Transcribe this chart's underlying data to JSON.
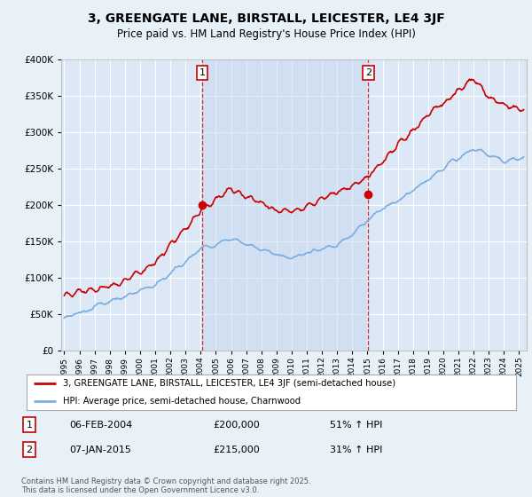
{
  "title": "3, GREENGATE LANE, BIRSTALL, LEICESTER, LE4 3JF",
  "subtitle": "Price paid vs. HM Land Registry's House Price Index (HPI)",
  "bg_color": "#e8f0f8",
  "plot_bg_color": "#dce8f5",
  "grid_color": "#ffffff",
  "red_line_color": "#cc0000",
  "blue_line_color": "#7aade0",
  "shade_color": "#c8d8f0",
  "marker1_x": 2004.1,
  "marker1_y": 200000,
  "marker2_x": 2015.05,
  "marker2_y": 215000,
  "ylim": [
    0,
    400000
  ],
  "xlim_start": 1994.8,
  "xlim_end": 2025.5,
  "legend_label_red": "3, GREENGATE LANE, BIRSTALL, LEICESTER, LE4 3JF (semi-detached house)",
  "legend_label_blue": "HPI: Average price, semi-detached house, Charnwood",
  "annotation1_label": "1",
  "annotation1_date": "06-FEB-2004",
  "annotation1_price": "£200,000",
  "annotation1_pct": "51% ↑ HPI",
  "annotation2_label": "2",
  "annotation2_date": "07-JAN-2015",
  "annotation2_price": "£215,000",
  "annotation2_pct": "31% ↑ HPI",
  "footer": "Contains HM Land Registry data © Crown copyright and database right 2025.\nThis data is licensed under the Open Government Licence v3.0."
}
